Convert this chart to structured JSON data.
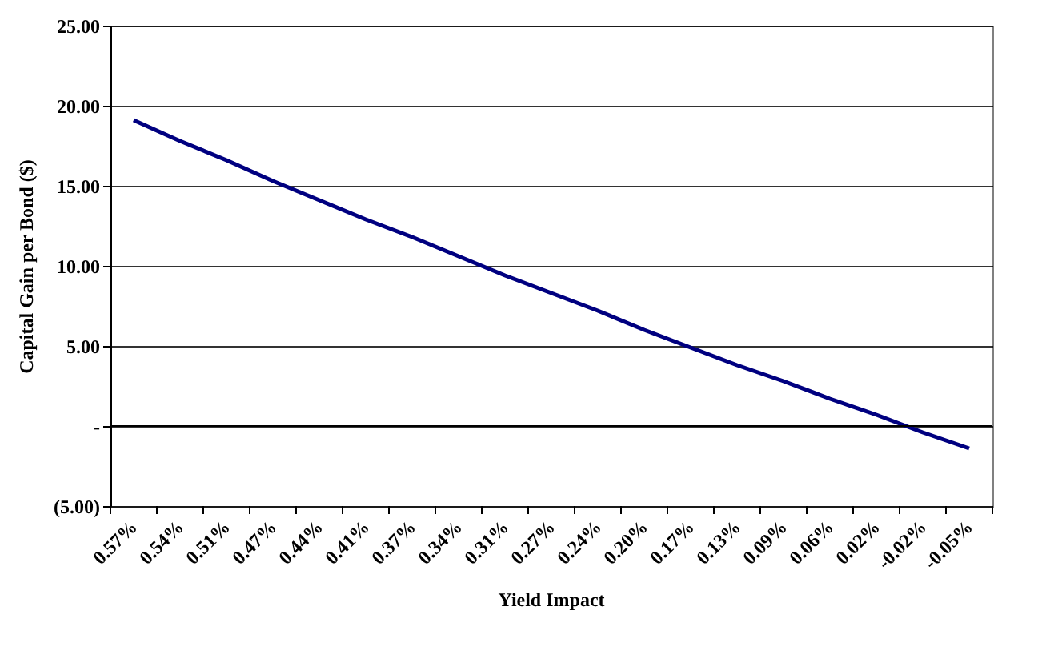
{
  "chart_data": {
    "type": "line",
    "xlabel": "Yield Impact",
    "ylabel": "Capital Gain per Bond ($)",
    "categories": [
      "0.57%",
      "0.54%",
      "0.51%",
      "0.47%",
      "0.44%",
      "0.41%",
      "0.37%",
      "0.34%",
      "0.31%",
      "0.27%",
      "0.24%",
      "0.20%",
      "0.17%",
      "0.13%",
      "0.09%",
      "0.06%",
      "0.02%",
      "-0.02%",
      "-0.05%"
    ],
    "series": [
      {
        "color": "#000080",
        "values": [
          19.1,
          17.8,
          16.6,
          15.3,
          14.1,
          12.9,
          11.8,
          10.6,
          9.4,
          8.3,
          7.2,
          6.0,
          4.9,
          3.8,
          2.8,
          1.7,
          0.7,
          -0.4,
          -1.4
        ]
      }
    ],
    "ylim": [
      -5,
      25
    ],
    "yticks": [
      {
        "value": -5,
        "label": "(5.00)"
      },
      {
        "value": 0,
        "label": "-"
      },
      {
        "value": 5,
        "label": "5.00"
      },
      {
        "value": 10,
        "label": "10.00"
      },
      {
        "value": 15,
        "label": "15.00"
      },
      {
        "value": 20,
        "label": "20.00"
      },
      {
        "value": 25,
        "label": "25.00"
      }
    ],
    "grid": "y",
    "marker": "none",
    "line_style": "solid"
  }
}
